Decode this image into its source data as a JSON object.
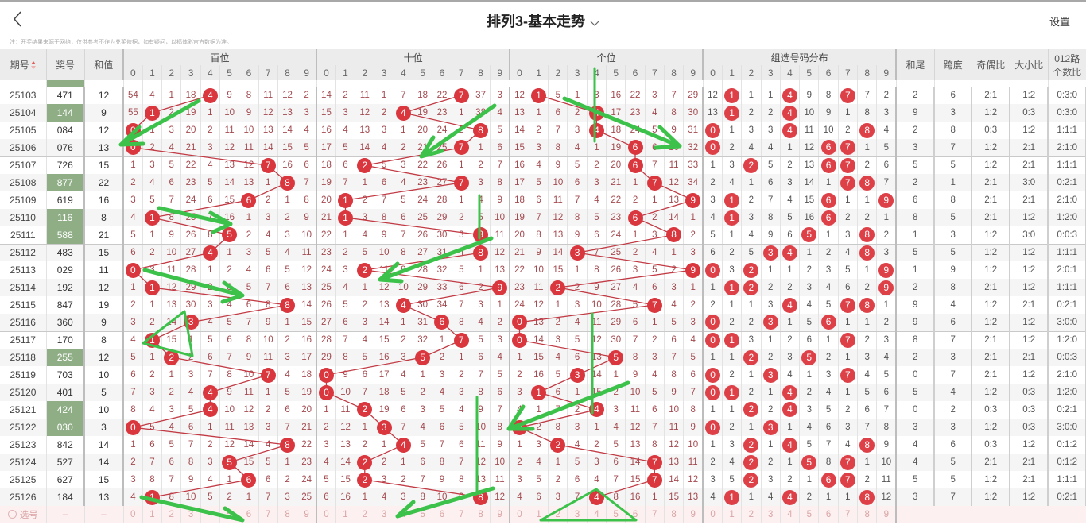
{
  "header": {
    "back_icon": "chevron-left-icon",
    "title": "排列3-基本走势",
    "dropdown_icon": "chevron-down-icon",
    "settings": "设置"
  },
  "note": "注：开奖结果来源于网络，仅供参考不作为兑奖依据，如有疑问，以福体彩官方数据为准。",
  "columns": {
    "issue": "期号",
    "draw": "奖号",
    "sum": "和值",
    "hundreds": "百位",
    "tens": "十位",
    "units": "个位",
    "group": "组选号码分布",
    "sum_tail": "和尾",
    "span": "跨度",
    "odd_even": "奇偶比",
    "big_small": "大小比",
    "route012_line1": "012路",
    "route012_line2": "个数比",
    "sort_icon": "sort-arrows-icon"
  },
  "digits": [
    "0",
    "1",
    "2",
    "3",
    "4",
    "5",
    "6",
    "7",
    "8",
    "9"
  ],
  "colors": {
    "hit": "#d9363e",
    "double_hit": "#8a1f24",
    "pair_draw_bg": "#8fae86",
    "omission_text": "#a34a4f",
    "annotation": "#3cc24a"
  },
  "rows": [
    {
      "issue": "25103",
      "draw": "471",
      "sum": "12",
      "pair": false,
      "hundreds": [
        54,
        4,
        1,
        18,
        4,
        9,
        8,
        11,
        12,
        2
      ],
      "tens": [
        14,
        2,
        11,
        1,
        7,
        18,
        22,
        7,
        37,
        3
      ],
      "units": [
        12,
        1,
        5,
        1,
        3,
        16,
        22,
        3,
        7,
        29
      ],
      "group": [
        12,
        1,
        1,
        1,
        4,
        9,
        8,
        7,
        7,
        2
      ],
      "sum_tail": "2",
      "span": "6",
      "odd_even": "2:1",
      "big_small": "1:2",
      "route012": "0:3:0"
    },
    {
      "issue": "25104",
      "draw": "144",
      "sum": "9",
      "pair": true,
      "hundreds": [
        55,
        1,
        2,
        19,
        1,
        10,
        9,
        12,
        13,
        3
      ],
      "tens": [
        15,
        3,
        12,
        2,
        4,
        19,
        23,
        1,
        38,
        4
      ],
      "units": [
        13,
        1,
        6,
        2,
        4,
        17,
        23,
        4,
        8,
        30
      ],
      "group": [
        13,
        1,
        2,
        2,
        4,
        10,
        9,
        1,
        8,
        3
      ],
      "sum_tail": "9",
      "span": "3",
      "odd_even": "1:2",
      "big_small": "0:3",
      "route012": "0:3:0"
    },
    {
      "issue": "25105",
      "draw": "084",
      "sum": "12",
      "pair": false,
      "hundreds": [
        0,
        1,
        3,
        20,
        2,
        11,
        10,
        13,
        14,
        4
      ],
      "tens": [
        16,
        4,
        13,
        3,
        1,
        20,
        24,
        2,
        8,
        5
      ],
      "units": [
        14,
        2,
        7,
        3,
        4,
        18,
        24,
        5,
        9,
        31
      ],
      "group": [
        0,
        1,
        3,
        3,
        4,
        11,
        10,
        2,
        8,
        4
      ],
      "sum_tail": "2",
      "span": "8",
      "odd_even": "0:3",
      "big_small": "1:2",
      "route012": "1:1:1"
    },
    {
      "issue": "25106",
      "draw": "076",
      "sum": "13",
      "pair": false,
      "hundreds": [
        0,
        2,
        4,
        21,
        3,
        12,
        11,
        14,
        15,
        5
      ],
      "tens": [
        17,
        5,
        14,
        4,
        2,
        21,
        25,
        7,
        1,
        6
      ],
      "units": [
        15,
        3,
        8,
        4,
        1,
        19,
        6,
        6,
        10,
        32
      ],
      "group": [
        0,
        2,
        4,
        4,
        1,
        12,
        6,
        7,
        1,
        5
      ],
      "sum_tail": "3",
      "span": "7",
      "odd_even": "1:2",
      "big_small": "2:1",
      "route012": "2:1:0"
    },
    {
      "issue": "25107",
      "draw": "726",
      "sum": "15",
      "pair": false,
      "hundreds": [
        1,
        3,
        5,
        22,
        4,
        13,
        12,
        7,
        16,
        6
      ],
      "tens": [
        18,
        6,
        2,
        5,
        3,
        22,
        26,
        1,
        2,
        7
      ],
      "units": [
        16,
        4,
        9,
        5,
        2,
        20,
        6,
        7,
        11,
        33
      ],
      "group": [
        1,
        3,
        2,
        5,
        2,
        13,
        6,
        7,
        2,
        6
      ],
      "sum_tail": "5",
      "span": "5",
      "odd_even": "1:2",
      "big_small": "2:1",
      "route012": "1:1:1"
    },
    {
      "issue": "25108",
      "draw": "877",
      "sum": "22",
      "pair": true,
      "hundreds": [
        2,
        4,
        6,
        23,
        5,
        14,
        13,
        1,
        8,
        7
      ],
      "tens": [
        19,
        7,
        1,
        6,
        4,
        23,
        27,
        7,
        3,
        8
      ],
      "units": [
        17,
        5,
        10,
        6,
        3,
        21,
        1,
        7,
        12,
        34
      ],
      "group": [
        2,
        4,
        1,
        6,
        3,
        14,
        1,
        7,
        8,
        7
      ],
      "sum_tail": "2",
      "span": "1",
      "odd_even": "2:1",
      "big_small": "3:0",
      "route012": "0:2:1"
    },
    {
      "issue": "25109",
      "draw": "619",
      "sum": "16",
      "pair": false,
      "hundreds": [
        3,
        5,
        7,
        24,
        6,
        15,
        6,
        2,
        1,
        8
      ],
      "tens": [
        20,
        1,
        2,
        7,
        5,
        24,
        28,
        1,
        4,
        9
      ],
      "units": [
        18,
        6,
        11,
        7,
        4,
        22,
        2,
        1,
        13,
        9
      ],
      "group": [
        3,
        1,
        2,
        7,
        4,
        15,
        6,
        1,
        1,
        9
      ],
      "sum_tail": "6",
      "span": "8",
      "odd_even": "2:1",
      "big_small": "2:1",
      "route012": "2:1:0"
    },
    {
      "issue": "25110",
      "draw": "116",
      "sum": "8",
      "pair": true,
      "hundreds": [
        4,
        1,
        8,
        25,
        7,
        16,
        1,
        3,
        2,
        9
      ],
      "tens": [
        21,
        1,
        3,
        8,
        6,
        25,
        29,
        2,
        5,
        10
      ],
      "units": [
        19,
        7,
        12,
        8,
        5,
        23,
        6,
        2,
        14,
        1
      ],
      "group": [
        4,
        1,
        3,
        8,
        5,
        16,
        6,
        2,
        2,
        1
      ],
      "sum_tail": "8",
      "span": "5",
      "odd_even": "2:1",
      "big_small": "1:2",
      "route012": "1:2:0"
    },
    {
      "issue": "25111",
      "draw": "588",
      "sum": "21",
      "pair": true,
      "hundreds": [
        5,
        1,
        9,
        26,
        8,
        5,
        2,
        4,
        3,
        10
      ],
      "tens": [
        22,
        1,
        4,
        9,
        7,
        26,
        30,
        3,
        8,
        11
      ],
      "units": [
        20,
        8,
        13,
        9,
        6,
        24,
        1,
        3,
        8,
        2
      ],
      "group": [
        5,
        1,
        4,
        9,
        6,
        5,
        1,
        3,
        8,
        2
      ],
      "sum_tail": "1",
      "span": "3",
      "odd_even": "1:2",
      "big_small": "3:0",
      "route012": "0:0:3"
    },
    {
      "issue": "25112",
      "draw": "483",
      "sum": "15",
      "pair": false,
      "hundreds": [
        6,
        2,
        10,
        27,
        4,
        1,
        3,
        5,
        4,
        11
      ],
      "tens": [
        23,
        2,
        5,
        10,
        8,
        27,
        31,
        4,
        8,
        12
      ],
      "units": [
        21,
        9,
        14,
        3,
        7,
        25,
        2,
        4,
        1,
        3
      ],
      "group": [
        6,
        2,
        5,
        3,
        4,
        1,
        2,
        4,
        8,
        3
      ],
      "sum_tail": "5",
      "span": "5",
      "odd_even": "1:2",
      "big_small": "1:2",
      "route012": "1:1:1"
    },
    {
      "issue": "25113",
      "draw": "029",
      "sum": "11",
      "pair": false,
      "hundreds": [
        0,
        3,
        11,
        28,
        1,
        2,
        4,
        6,
        5,
        12
      ],
      "tens": [
        24,
        3,
        2,
        11,
        9,
        28,
        32,
        5,
        1,
        13
      ],
      "units": [
        22,
        10,
        15,
        1,
        8,
        26,
        3,
        5,
        2,
        9
      ],
      "group": [
        0,
        3,
        2,
        1,
        1,
        2,
        3,
        5,
        1,
        9
      ],
      "sum_tail": "1",
      "span": "9",
      "odd_even": "1:2",
      "big_small": "1:2",
      "route012": "2:0:1"
    },
    {
      "issue": "25114",
      "draw": "192",
      "sum": "12",
      "pair": false,
      "hundreds": [
        1,
        1,
        12,
        29,
        2,
        3,
        5,
        7,
        6,
        13
      ],
      "tens": [
        25,
        4,
        1,
        12,
        10,
        29,
        33,
        6,
        2,
        9
      ],
      "units": [
        23,
        11,
        2,
        2,
        9,
        27,
        4,
        6,
        3,
        1
      ],
      "group": [
        1,
        1,
        2,
        2,
        2,
        3,
        4,
        6,
        2,
        9
      ],
      "sum_tail": "2",
      "span": "8",
      "odd_even": "2:1",
      "big_small": "1:2",
      "route012": "1:1:1"
    },
    {
      "issue": "25115",
      "draw": "847",
      "sum": "19",
      "pair": false,
      "hundreds": [
        2,
        1,
        13,
        30,
        3,
        4,
        6,
        8,
        8,
        14
      ],
      "tens": [
        26,
        5,
        2,
        13,
        4,
        30,
        34,
        7,
        3,
        1
      ],
      "units": [
        24,
        12,
        1,
        3,
        10,
        28,
        5,
        7,
        4,
        2
      ],
      "group": [
        2,
        1,
        1,
        3,
        4,
        4,
        5,
        7,
        8,
        1
      ],
      "sum_tail": "9",
      "span": "4",
      "odd_even": "1:2",
      "big_small": "2:1",
      "route012": "0:2:1"
    },
    {
      "issue": "25116",
      "draw": "360",
      "sum": "9",
      "pair": false,
      "hundreds": [
        3,
        2,
        14,
        3,
        4,
        5,
        7,
        9,
        1,
        15
      ],
      "tens": [
        27,
        6,
        3,
        14,
        1,
        31,
        6,
        8,
        4,
        2
      ],
      "units": [
        0,
        13,
        2,
        4,
        11,
        29,
        6,
        1,
        5,
        3
      ],
      "group": [
        0,
        2,
        2,
        3,
        1,
        5,
        6,
        1,
        1,
        2
      ],
      "sum_tail": "9",
      "span": "6",
      "odd_even": "1:2",
      "big_small": "1:2",
      "route012": "3:0:0"
    },
    {
      "issue": "25117",
      "draw": "170",
      "sum": "8",
      "pair": false,
      "hundreds": [
        4,
        1,
        15,
        1,
        5,
        6,
        8,
        10,
        2,
        16
      ],
      "tens": [
        28,
        7,
        4,
        15,
        2,
        32,
        1,
        7,
        5,
        3
      ],
      "units": [
        0,
        14,
        3,
        5,
        12,
        30,
        7,
        2,
        6,
        4
      ],
      "group": [
        0,
        1,
        3,
        1,
        2,
        6,
        1,
        7,
        2,
        3
      ],
      "sum_tail": "8",
      "span": "7",
      "odd_even": "2:1",
      "big_small": "1:2",
      "route012": "1:2:0"
    },
    {
      "issue": "25118",
      "draw": "255",
      "sum": "12",
      "pair": true,
      "hundreds": [
        5,
        1,
        2,
        2,
        6,
        7,
        9,
        11,
        3,
        17
      ],
      "tens": [
        29,
        8,
        5,
        16,
        3,
        5,
        2,
        1,
        6,
        4
      ],
      "units": [
        1,
        15,
        4,
        6,
        13,
        5,
        8,
        3,
        7,
        5
      ],
      "group": [
        1,
        1,
        2,
        2,
        3,
        5,
        2,
        1,
        3,
        4
      ],
      "sum_tail": "2",
      "span": "3",
      "odd_even": "2:1",
      "big_small": "2:1",
      "route012": "0:0:3"
    },
    {
      "issue": "25119",
      "draw": "703",
      "sum": "10",
      "pair": false,
      "hundreds": [
        6,
        2,
        1,
        3,
        7,
        8,
        10,
        7,
        4,
        18
      ],
      "tens": [
        0,
        9,
        6,
        17,
        4,
        1,
        3,
        2,
        7,
        5
      ],
      "units": [
        2,
        16,
        5,
        3,
        14,
        1,
        9,
        4,
        8,
        6
      ],
      "group": [
        0,
        2,
        1,
        3,
        4,
        1,
        3,
        7,
        4,
        5
      ],
      "sum_tail": "0",
      "span": "7",
      "odd_even": "2:1",
      "big_small": "1:2",
      "route012": "2:1:0"
    },
    {
      "issue": "25120",
      "draw": "401",
      "sum": "5",
      "pair": false,
      "hundreds": [
        7,
        3,
        2,
        4,
        4,
        9,
        11,
        1,
        5,
        19
      ],
      "tens": [
        0,
        10,
        7,
        18,
        5,
        2,
        4,
        3,
        8,
        6
      ],
      "units": [
        3,
        1,
        6,
        1,
        15,
        2,
        10,
        5,
        9,
        7
      ],
      "group": [
        0,
        1,
        2,
        1,
        4,
        2,
        4,
        1,
        5,
        6
      ],
      "sum_tail": "5",
      "span": "4",
      "odd_even": "1:2",
      "big_small": "0:3",
      "route012": "1:2:0"
    },
    {
      "issue": "25121",
      "draw": "424",
      "sum": "10",
      "pair": true,
      "hundreds": [
        8,
        4,
        3,
        5,
        4,
        10,
        12,
        2,
        6,
        20
      ],
      "tens": [
        1,
        11,
        2,
        19,
        6,
        3,
        5,
        4,
        9,
        7
      ],
      "units": [
        4,
        1,
        7,
        2,
        4,
        3,
        11,
        6,
        10,
        8
      ],
      "group": [
        1,
        1,
        2,
        2,
        4,
        3,
        5,
        2,
        6,
        7
      ],
      "sum_tail": "0",
      "span": "2",
      "odd_even": "0:3",
      "big_small": "0:3",
      "route012": "0:2:1"
    },
    {
      "issue": "25122",
      "draw": "030",
      "sum": "3",
      "pair": true,
      "hundreds": [
        0,
        5,
        4,
        6,
        1,
        11,
        13,
        3,
        7,
        21
      ],
      "tens": [
        2,
        12,
        1,
        3,
        7,
        4,
        6,
        5,
        10,
        8
      ],
      "units": [
        0,
        2,
        8,
        3,
        1,
        4,
        12,
        7,
        11,
        9
      ],
      "group": [
        0,
        2,
        1,
        3,
        1,
        4,
        6,
        3,
        7,
        8
      ],
      "sum_tail": "3",
      "span": "3",
      "odd_even": "1:2",
      "big_small": "0:3",
      "route012": "3:0:0"
    },
    {
      "issue": "25123",
      "draw": "842",
      "sum": "14",
      "pair": false,
      "hundreds": [
        1,
        6,
        5,
        7,
        2,
        12,
        14,
        4,
        8,
        22
      ],
      "tens": [
        3,
        13,
        2,
        1,
        4,
        5,
        7,
        6,
        11,
        9
      ],
      "units": [
        1,
        3,
        2,
        4,
        2,
        5,
        13,
        8,
        12,
        10
      ],
      "group": [
        1,
        3,
        2,
        1,
        4,
        5,
        7,
        4,
        8,
        9
      ],
      "sum_tail": "4",
      "span": "6",
      "odd_even": "0:3",
      "big_small": "1:2",
      "route012": "0:1:2"
    },
    {
      "issue": "25124",
      "draw": "527",
      "sum": "14",
      "pair": false,
      "hundreds": [
        2,
        7,
        6,
        8,
        3,
        5,
        15,
        5,
        1,
        23
      ],
      "tens": [
        4,
        14,
        2,
        2,
        1,
        6,
        8,
        7,
        12,
        10
      ],
      "units": [
        2,
        4,
        1,
        5,
        3,
        6,
        14,
        7,
        13,
        11
      ],
      "group": [
        2,
        4,
        2,
        2,
        1,
        5,
        8,
        7,
        1,
        10
      ],
      "sum_tail": "4",
      "span": "5",
      "odd_even": "2:1",
      "big_small": "2:1",
      "route012": "0:1:2"
    },
    {
      "issue": "25125",
      "draw": "627",
      "sum": "15",
      "pair": false,
      "hundreds": [
        3,
        8,
        7,
        9,
        4,
        1,
        6,
        6,
        2,
        24
      ],
      "tens": [
        5,
        15,
        2,
        3,
        2,
        7,
        9,
        8,
        13,
        11
      ],
      "units": [
        3,
        5,
        2,
        6,
        4,
        7,
        15,
        7,
        14,
        12
      ],
      "group": [
        3,
        5,
        2,
        3,
        2,
        1,
        6,
        7,
        2,
        11
      ],
      "sum_tail": "5",
      "span": "5",
      "odd_even": "1:2",
      "big_small": "2:1",
      "route012": "1:1:1"
    },
    {
      "issue": "25126",
      "draw": "184",
      "sum": "13",
      "pair": false,
      "hundreds": [
        4,
        1,
        8,
        10,
        5,
        2,
        1,
        7,
        3,
        25
      ],
      "tens": [
        6,
        16,
        1,
        4,
        3,
        8,
        10,
        9,
        8,
        12
      ],
      "units": [
        4,
        6,
        3,
        7,
        4,
        8,
        16,
        1,
        15,
        13
      ],
      "group": [
        4,
        1,
        1,
        4,
        4,
        2,
        1,
        1,
        8,
        12
      ],
      "sum_tail": "3",
      "span": "7",
      "odd_even": "1:2",
      "big_small": "1:2",
      "route012": "0:2:1"
    }
  ],
  "picker": {
    "icon": "radio-circle-icon",
    "label": "选号",
    "draw": "–",
    "sum": "–"
  }
}
